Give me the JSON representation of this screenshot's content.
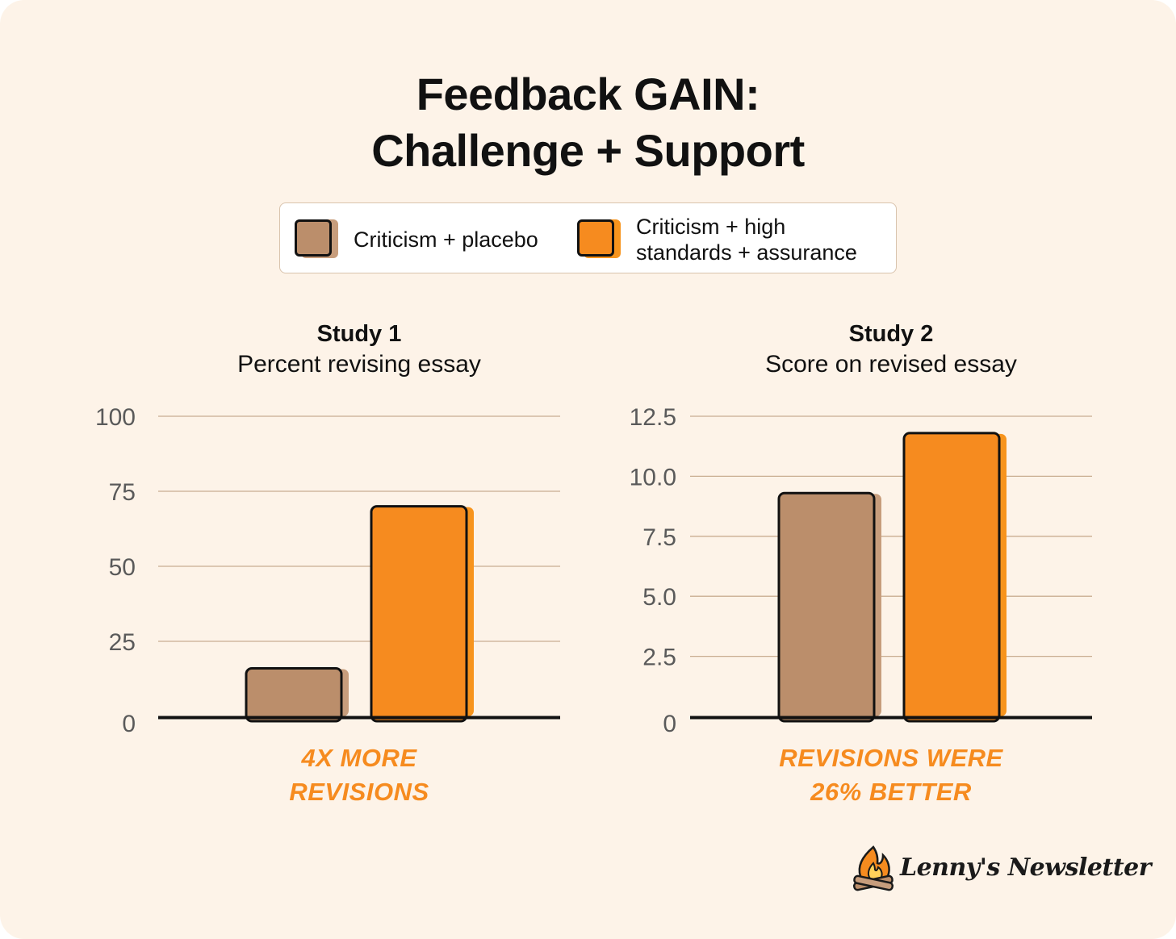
{
  "title": {
    "line1": "Feedback GAIN:",
    "line2": "Challenge + Support"
  },
  "legend": {
    "items": [
      {
        "label": "Criticism + placebo",
        "color": "#bb8e6b"
      },
      {
        "label_line1": "Criticism + high",
        "label_line2": "standards + assurance",
        "color": "#f68b1f"
      }
    ]
  },
  "colors": {
    "placebo": "#bb8e6b",
    "placebo_shadow": "#c79d7c",
    "assurance": "#f68b1f",
    "assurance_shadow": "#f7941d",
    "grid": "#c9ad91",
    "axis": "#111111",
    "annotation": "#f68b1f",
    "tick": "#5a5a5a"
  },
  "chart_data": [
    {
      "type": "bar",
      "title": "Study 1",
      "subtitle": "Percent revising essay",
      "categories": [
        "Criticism + placebo",
        "Criticism + high standards + assurance"
      ],
      "values": [
        16,
        70
      ],
      "ylim": [
        0,
        100
      ],
      "yticks": [
        "0",
        "25",
        "50",
        "75",
        "100"
      ],
      "ytick_values": [
        0,
        25,
        50,
        75,
        100
      ],
      "annotation": [
        "4X MORE",
        "REVISIONS"
      ]
    },
    {
      "type": "bar",
      "title": "Study 2",
      "subtitle": "Score on revised essay",
      "categories": [
        "Criticism + placebo",
        "Criticism + high standards + assurance"
      ],
      "values": [
        9.3,
        11.8
      ],
      "ylim": [
        0,
        12.5
      ],
      "yticks": [
        "0",
        "2.5",
        "5.0",
        "7.5",
        "10.0",
        "12.5"
      ],
      "ytick_values": [
        0,
        2.5,
        5,
        7.5,
        10,
        12.5
      ],
      "annotation": [
        "REVISIONS WERE",
        "26% BETTER"
      ]
    }
  ],
  "logo": {
    "text": "Lenny's Newsletter",
    "icon": "campfire-icon"
  }
}
